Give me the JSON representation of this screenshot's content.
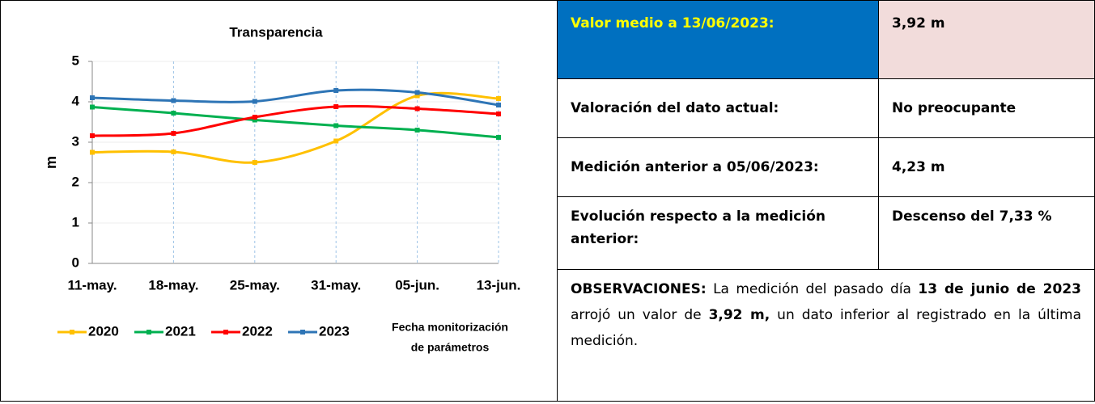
{
  "chart_data": {
    "type": "line",
    "title": "Transparencia",
    "y_label": "m",
    "x_label": [
      "Fecha monitorización",
      "de parámetros"
    ],
    "categories": [
      "11-may.",
      "18-may.",
      "25-may.",
      "31-may.",
      "05-jun.",
      "13-jun."
    ],
    "series": [
      {
        "name": "2020",
        "color": "#ffc000",
        "values": [
          2.75,
          2.76,
          2.5,
          3.03,
          4.15,
          4.08
        ]
      },
      {
        "name": "2021",
        "color": "#00b050",
        "values": [
          3.87,
          3.72,
          3.55,
          3.41,
          3.3,
          3.12
        ]
      },
      {
        "name": "2022",
        "color": "#ff0000",
        "values": [
          3.16,
          3.22,
          3.62,
          3.88,
          3.83,
          3.7
        ]
      },
      {
        "name": "2023",
        "color": "#2e75b6",
        "values": [
          4.1,
          4.03,
          4.01,
          4.28,
          4.23,
          3.92
        ]
      }
    ],
    "ylim": [
      0,
      5
    ],
    "yticks": [
      0,
      1,
      2,
      3,
      4,
      5
    ],
    "grid": true,
    "smooth": true,
    "legend": "bottom"
  },
  "table": {
    "rows": [
      [
        "Valor medio a 13/06/2023:",
        "3,92 m"
      ],
      [
        "Valoración del dato actual:",
        "No preocupante"
      ],
      [
        "Medición anterior a 05/06/2023:",
        "4,23 m"
      ],
      [
        "Evolución respecto a la medición anterior:",
        "Descenso del 7,33 %"
      ]
    ]
  },
  "observations": [
    {
      "text": "OBSERVACIONES:",
      "bold": true
    },
    {
      "text": " La medición del pasado día ",
      "bold": false
    },
    {
      "text": "13 de junio de 2023",
      "bold": true
    },
    {
      "text": " arrojó un valor de ",
      "bold": false
    },
    {
      "text": "3,92 m,",
      "bold": true
    },
    {
      "text": " un dato inferior al registrado en la última medición.",
      "bold": false
    }
  ]
}
